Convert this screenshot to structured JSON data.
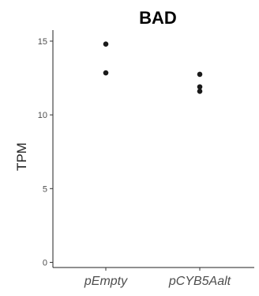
{
  "chart_data": {
    "type": "scatter",
    "title": "BAD",
    "xlabel": "",
    "ylabel": "TPM",
    "categories": [
      "pEmpty",
      "pCYB5Aalt"
    ],
    "ylim": [
      -0.35,
      15.75
    ],
    "yticks": [
      0,
      5,
      10,
      15
    ],
    "grid": false,
    "legend": "none",
    "point_color": "#1a1a1a",
    "series": [
      {
        "points": [
          {
            "x": "pEmpty",
            "y": 14.8
          },
          {
            "x": "pEmpty",
            "y": 12.85
          },
          {
            "x": "pCYB5Aalt",
            "y": 12.75
          },
          {
            "x": "pCYB5Aalt",
            "y": 11.9
          },
          {
            "x": "pCYB5Aalt",
            "y": 11.6
          }
        ]
      }
    ]
  }
}
